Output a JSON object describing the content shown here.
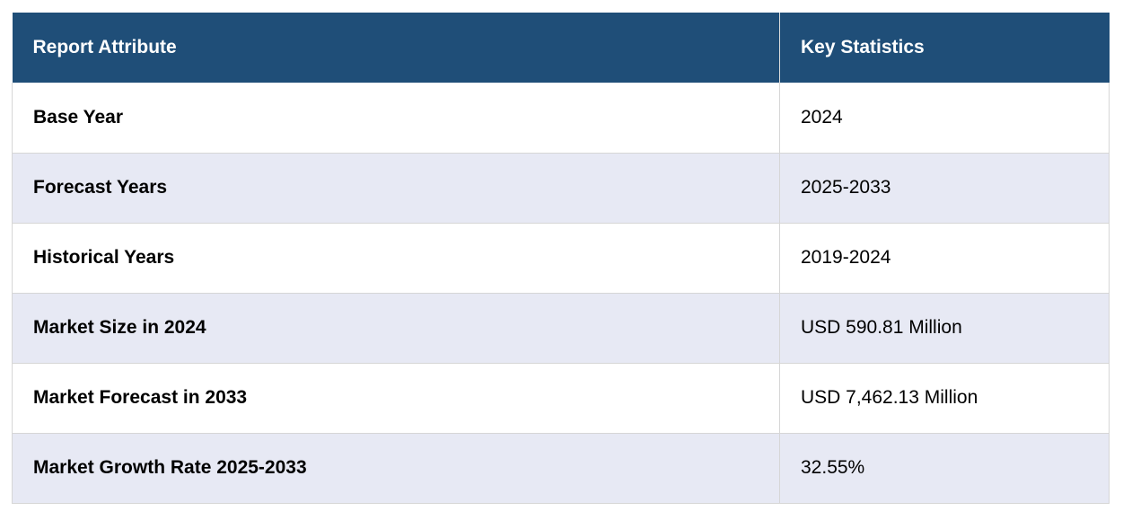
{
  "table": {
    "headers": [
      "Report Attribute",
      "Key Statistics"
    ],
    "rows": [
      [
        "Base Year",
        "2024"
      ],
      [
        "Forecast Years",
        "2025-2033"
      ],
      [
        "Historical Years",
        "2019-2024"
      ],
      [
        "Market Size in 2024",
        "USD 590.81 Million"
      ],
      [
        "Market Forecast in 2033",
        "USD 7,462.13 Million"
      ],
      [
        "Market Growth Rate 2025-2033",
        "32.55%"
      ]
    ]
  },
  "colors": {
    "header_bg": "#1f4e78",
    "header_text": "#ffffff",
    "row_alt_bg": "#e7e9f4",
    "row_bg": "#ffffff"
  }
}
